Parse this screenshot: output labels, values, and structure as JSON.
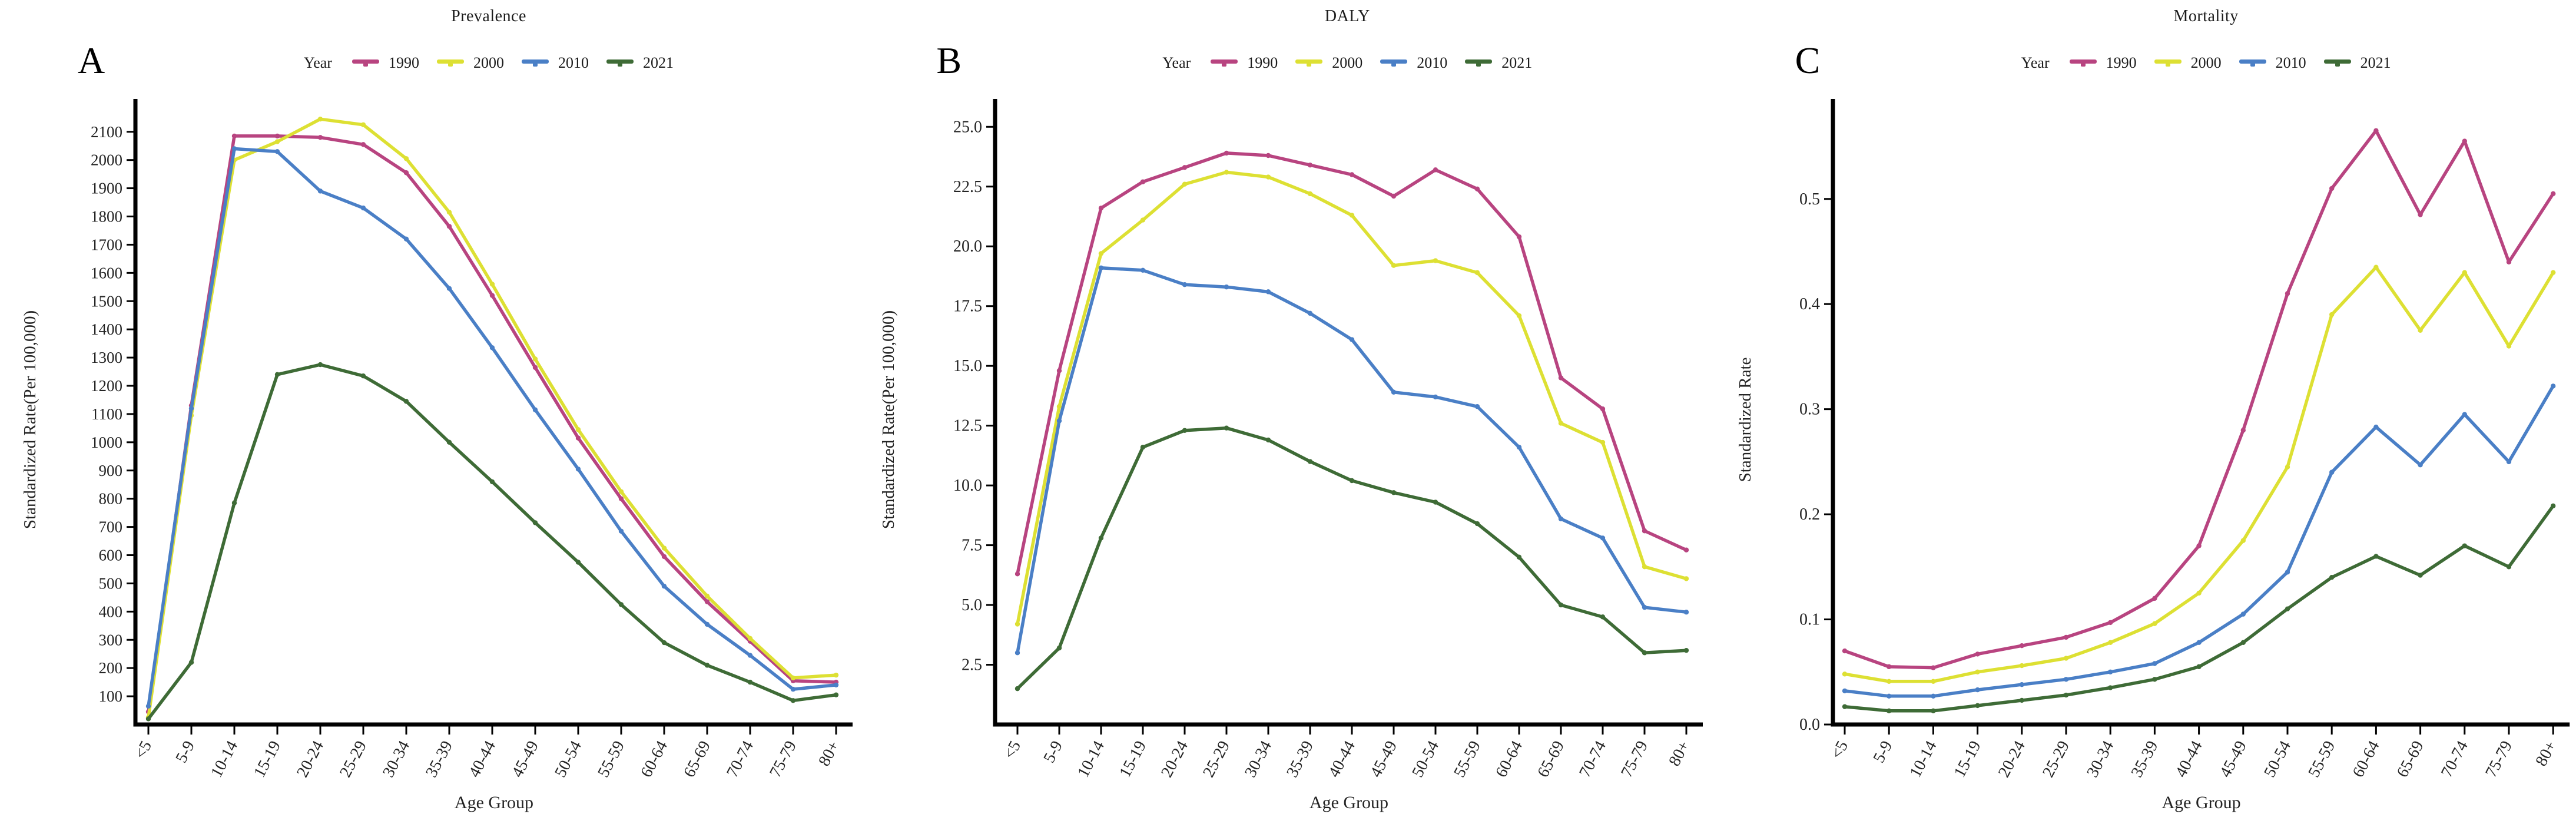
{
  "legend": {
    "title": "Year",
    "items": [
      {
        "label": "1990",
        "color": "#b84480"
      },
      {
        "label": "2000",
        "color": "#dde033"
      },
      {
        "label": "2010",
        "color": "#4a7fc6"
      },
      {
        "label": "2021",
        "color": "#3e6b36"
      }
    ]
  },
  "chart_data": [
    {
      "type": "line",
      "panel_label": "A",
      "title": "Prevalence",
      "xlabel": "Age Group",
      "ylabel": "Standardized Rate(Per 100,000)",
      "ylim": [
        0,
        2160
      ],
      "yticks": [
        100,
        200,
        300,
        400,
        500,
        600,
        700,
        800,
        900,
        1000,
        1100,
        1200,
        1300,
        1400,
        1500,
        1600,
        1700,
        1800,
        1900,
        2000,
        2100
      ],
      "ytick_decimals": 0,
      "grid": false,
      "legend_position": "top",
      "categories": [
        "<5",
        "5-9",
        "10-14",
        "15-19",
        "20-24",
        "25-29",
        "30-34",
        "35-39",
        "40-44",
        "45-49",
        "50-54",
        "55-59",
        "60-64",
        "65-69",
        "70-74",
        "75-79",
        "80+"
      ],
      "series": [
        {
          "name": "1990",
          "color": "#b84480",
          "values": [
            45,
            1130,
            2085,
            2085,
            2080,
            2055,
            1955,
            1765,
            1520,
            1265,
            1015,
            800,
            595,
            435,
            295,
            155,
            150
          ]
        },
        {
          "name": "2000",
          "color": "#dde033",
          "values": [
            25,
            1095,
            2000,
            2065,
            2145,
            2125,
            2005,
            1815,
            1560,
            1295,
            1045,
            825,
            625,
            455,
            305,
            165,
            175
          ]
        },
        {
          "name": "2010",
          "color": "#4a7fc6",
          "values": [
            65,
            1120,
            2040,
            2030,
            1890,
            1830,
            1720,
            1545,
            1335,
            1115,
            905,
            685,
            490,
            355,
            245,
            125,
            140
          ]
        },
        {
          "name": "2021",
          "color": "#3e6b36",
          "values": [
            20,
            220,
            785,
            1240,
            1275,
            1235,
            1145,
            1000,
            860,
            715,
            575,
            425,
            290,
            210,
            150,
            85,
            105
          ]
        }
      ]
    },
    {
      "type": "line",
      "panel_label": "B",
      "title": "DALY",
      "xlabel": "Age Group",
      "ylabel": "Standardized Rate(Per 100,000)",
      "ylim": [
        0,
        25.5
      ],
      "yticks": [
        2.5,
        5.0,
        7.5,
        10.0,
        12.5,
        15.0,
        17.5,
        20.0,
        22.5,
        25.0
      ],
      "ytick_decimals": 1,
      "grid": false,
      "legend_position": "top",
      "categories": [
        "<5",
        "5-9",
        "10-14",
        "15-19",
        "20-24",
        "25-29",
        "30-34",
        "35-39",
        "40-44",
        "45-49",
        "50-54",
        "55-59",
        "60-64",
        "65-69",
        "70-74",
        "75-79",
        "80+"
      ],
      "series": [
        {
          "name": "1990",
          "color": "#b84480",
          "values": [
            6.3,
            14.8,
            21.6,
            22.7,
            23.3,
            23.9,
            23.8,
            23.4,
            23.0,
            22.1,
            23.2,
            22.4,
            20.4,
            14.5,
            13.2,
            8.1,
            7.3
          ]
        },
        {
          "name": "2000",
          "color": "#dde033",
          "values": [
            4.2,
            13.3,
            19.7,
            21.1,
            22.6,
            23.1,
            22.9,
            22.2,
            21.3,
            19.2,
            19.4,
            18.9,
            17.1,
            12.6,
            11.8,
            6.6,
            6.1
          ]
        },
        {
          "name": "2010",
          "color": "#4a7fc6",
          "values": [
            3.0,
            12.7,
            19.1,
            19.0,
            18.4,
            18.3,
            18.1,
            17.2,
            16.1,
            13.9,
            13.7,
            13.3,
            11.6,
            8.6,
            7.8,
            4.9,
            4.7
          ]
        },
        {
          "name": "2021",
          "color": "#3e6b36",
          "values": [
            1.5,
            3.2,
            7.8,
            11.6,
            12.3,
            12.4,
            11.9,
            11.0,
            10.2,
            9.7,
            9.3,
            8.4,
            7.0,
            5.0,
            4.5,
            3.0,
            3.1
          ]
        }
      ]
    },
    {
      "type": "line",
      "panel_label": "C",
      "title": "Mortality",
      "xlabel": "Age Group",
      "ylabel": "Standardized Rate",
      "ylim": [
        0,
        0.58
      ],
      "yticks": [
        0.0,
        0.1,
        0.2,
        0.3,
        0.4,
        0.5
      ],
      "ytick_decimals": 1,
      "grid": false,
      "legend_position": "top",
      "categories": [
        "<5",
        "5-9",
        "10-14",
        "15-19",
        "20-24",
        "25-29",
        "30-34",
        "35-39",
        "40-44",
        "45-49",
        "50-54",
        "55-59",
        "60-64",
        "65-69",
        "70-74",
        "75-79",
        "80+"
      ],
      "series": [
        {
          "name": "1990",
          "color": "#b84480",
          "values": [
            0.07,
            0.055,
            0.054,
            0.067,
            0.075,
            0.083,
            0.097,
            0.12,
            0.17,
            0.28,
            0.41,
            0.51,
            0.565,
            0.485,
            0.555,
            0.44,
            0.505
          ]
        },
        {
          "name": "2000",
          "color": "#dde033",
          "values": [
            0.048,
            0.041,
            0.041,
            0.05,
            0.056,
            0.063,
            0.078,
            0.096,
            0.125,
            0.175,
            0.245,
            0.39,
            0.435,
            0.375,
            0.43,
            0.36,
            0.43
          ]
        },
        {
          "name": "2010",
          "color": "#4a7fc6",
          "values": [
            0.032,
            0.027,
            0.027,
            0.033,
            0.038,
            0.043,
            0.05,
            0.058,
            0.078,
            0.105,
            0.145,
            0.24,
            0.283,
            0.247,
            0.295,
            0.25,
            0.322
          ]
        },
        {
          "name": "2021",
          "color": "#3e6b36",
          "values": [
            0.017,
            0.013,
            0.013,
            0.018,
            0.023,
            0.028,
            0.035,
            0.043,
            0.055,
            0.078,
            0.11,
            0.14,
            0.16,
            0.142,
            0.17,
            0.15,
            0.208
          ]
        }
      ]
    }
  ]
}
